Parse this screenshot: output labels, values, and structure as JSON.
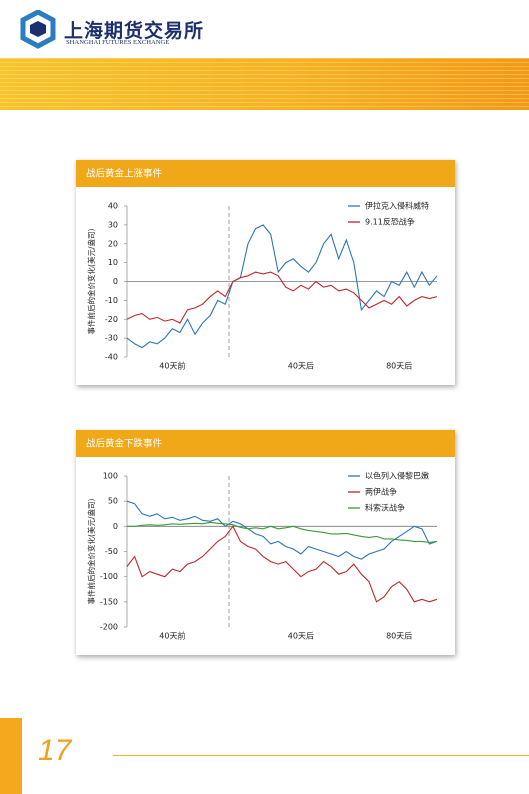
{
  "header": {
    "name_cn": "上海期货交易所",
    "name_en": "SHANGHAI FUTURES EXCHANGE"
  },
  "page_number": "17",
  "chart_data": [
    {
      "type": "line",
      "title": "战后黄金上涨事件",
      "y_label": "事件前后的金价变化(美元/盎司)",
      "x": [
        0,
        1,
        2,
        3,
        4,
        5,
        6,
        7,
        8,
        9,
        10,
        11,
        12,
        13,
        14,
        15,
        16,
        17,
        18,
        19,
        20,
        21,
        22,
        23,
        24,
        25,
        26,
        27,
        28,
        29,
        30,
        31,
        32,
        33,
        34,
        35,
        36,
        37,
        38,
        39,
        40,
        41
      ],
      "xlim": [
        0,
        41
      ],
      "xticks": [
        {
          "value": 6,
          "label": "40天前"
        },
        {
          "value": 23,
          "label": "40天后"
        },
        {
          "value": 36,
          "label": "80天后"
        }
      ],
      "ylim": [
        -40,
        40
      ],
      "yticks": [
        -40,
        -30,
        -20,
        -10,
        0,
        10,
        20,
        30,
        40
      ],
      "legend": "upper right",
      "series": [
        {
          "name": "伊拉克入侵科威特",
          "color": "#2e75b6",
          "values": [
            -30,
            -33,
            -35,
            -32,
            -33,
            -30,
            -25,
            -27,
            -20,
            -28,
            -22,
            -18,
            -10,
            -12,
            0,
            2,
            20,
            28,
            30,
            25,
            5,
            10,
            12,
            8,
            5,
            10,
            20,
            25,
            12,
            22,
            10,
            -15,
            -10,
            -5,
            -8,
            0,
            -2,
            5,
            -3,
            5,
            -2,
            3
          ]
        },
        {
          "name": "9.11反恐战争",
          "color": "#c0272d",
          "values": [
            -20,
            -18,
            -17,
            -20,
            -19,
            -21,
            -20,
            -22,
            -15,
            -14,
            -12,
            -8,
            -5,
            -8,
            0,
            2,
            3,
            5,
            4,
            5,
            3,
            -3,
            -5,
            -2,
            -4,
            0,
            -3,
            -2,
            -5,
            -4,
            -6,
            -10,
            -14,
            -12,
            -10,
            -12,
            -8,
            -13,
            -10,
            -8,
            -9,
            -8
          ]
        }
      ]
    },
    {
      "type": "line",
      "title": "战后黄金下跌事件",
      "y_label": "事件前后的金价变化(美元/盎司)",
      "x": [
        0,
        1,
        2,
        3,
        4,
        5,
        6,
        7,
        8,
        9,
        10,
        11,
        12,
        13,
        14,
        15,
        16,
        17,
        18,
        19,
        20,
        21,
        22,
        23,
        24,
        25,
        26,
        27,
        28,
        29,
        30,
        31,
        32,
        33,
        34,
        35,
        36,
        37,
        38,
        39,
        40,
        41
      ],
      "xlim": [
        0,
        41
      ],
      "xticks": [
        {
          "value": 6,
          "label": "40天前"
        },
        {
          "value": 23,
          "label": "40天后"
        },
        {
          "value": 36,
          "label": "80天后"
        }
      ],
      "ylim": [
        -200,
        100
      ],
      "yticks": [
        -200,
        -150,
        -100,
        -50,
        0,
        50,
        100
      ],
      "legend": "upper right",
      "series": [
        {
          "name": "以色列入侵黎巴嫩",
          "color": "#2e75b6",
          "values": [
            50,
            45,
            25,
            20,
            25,
            15,
            18,
            12,
            15,
            20,
            12,
            10,
            15,
            0,
            10,
            5,
            -5,
            -15,
            -20,
            -35,
            -30,
            -40,
            -45,
            -55,
            -40,
            -45,
            -50,
            -55,
            -60,
            -50,
            -60,
            -65,
            -55,
            -50,
            -45,
            -30,
            -20,
            -10,
            0,
            -5,
            -35,
            -30
          ]
        },
        {
          "name": "两伊战争",
          "color": "#c0272d",
          "values": [
            -80,
            -60,
            -100,
            -90,
            -95,
            -100,
            -85,
            -90,
            -75,
            -70,
            -60,
            -45,
            -30,
            -20,
            0,
            -30,
            -40,
            -45,
            -60,
            -70,
            -75,
            -70,
            -85,
            -100,
            -90,
            -85,
            -70,
            -80,
            -95,
            -90,
            -75,
            -95,
            -110,
            -150,
            -140,
            -120,
            -110,
            -125,
            -150,
            -145,
            -150,
            -145
          ]
        },
        {
          "name": "科索沃战争",
          "color": "#3a9a3a",
          "values": [
            0,
            0,
            2,
            3,
            2,
            3,
            5,
            4,
            5,
            6,
            5,
            8,
            6,
            5,
            3,
            -2,
            -5,
            -3,
            -5,
            0,
            -5,
            -3,
            0,
            -5,
            -8,
            -10,
            -12,
            -15,
            -15,
            -14,
            -17,
            -20,
            -22,
            -20,
            -25,
            -25,
            -27,
            -28,
            -30,
            -30,
            -32,
            -30
          ]
        }
      ]
    }
  ]
}
